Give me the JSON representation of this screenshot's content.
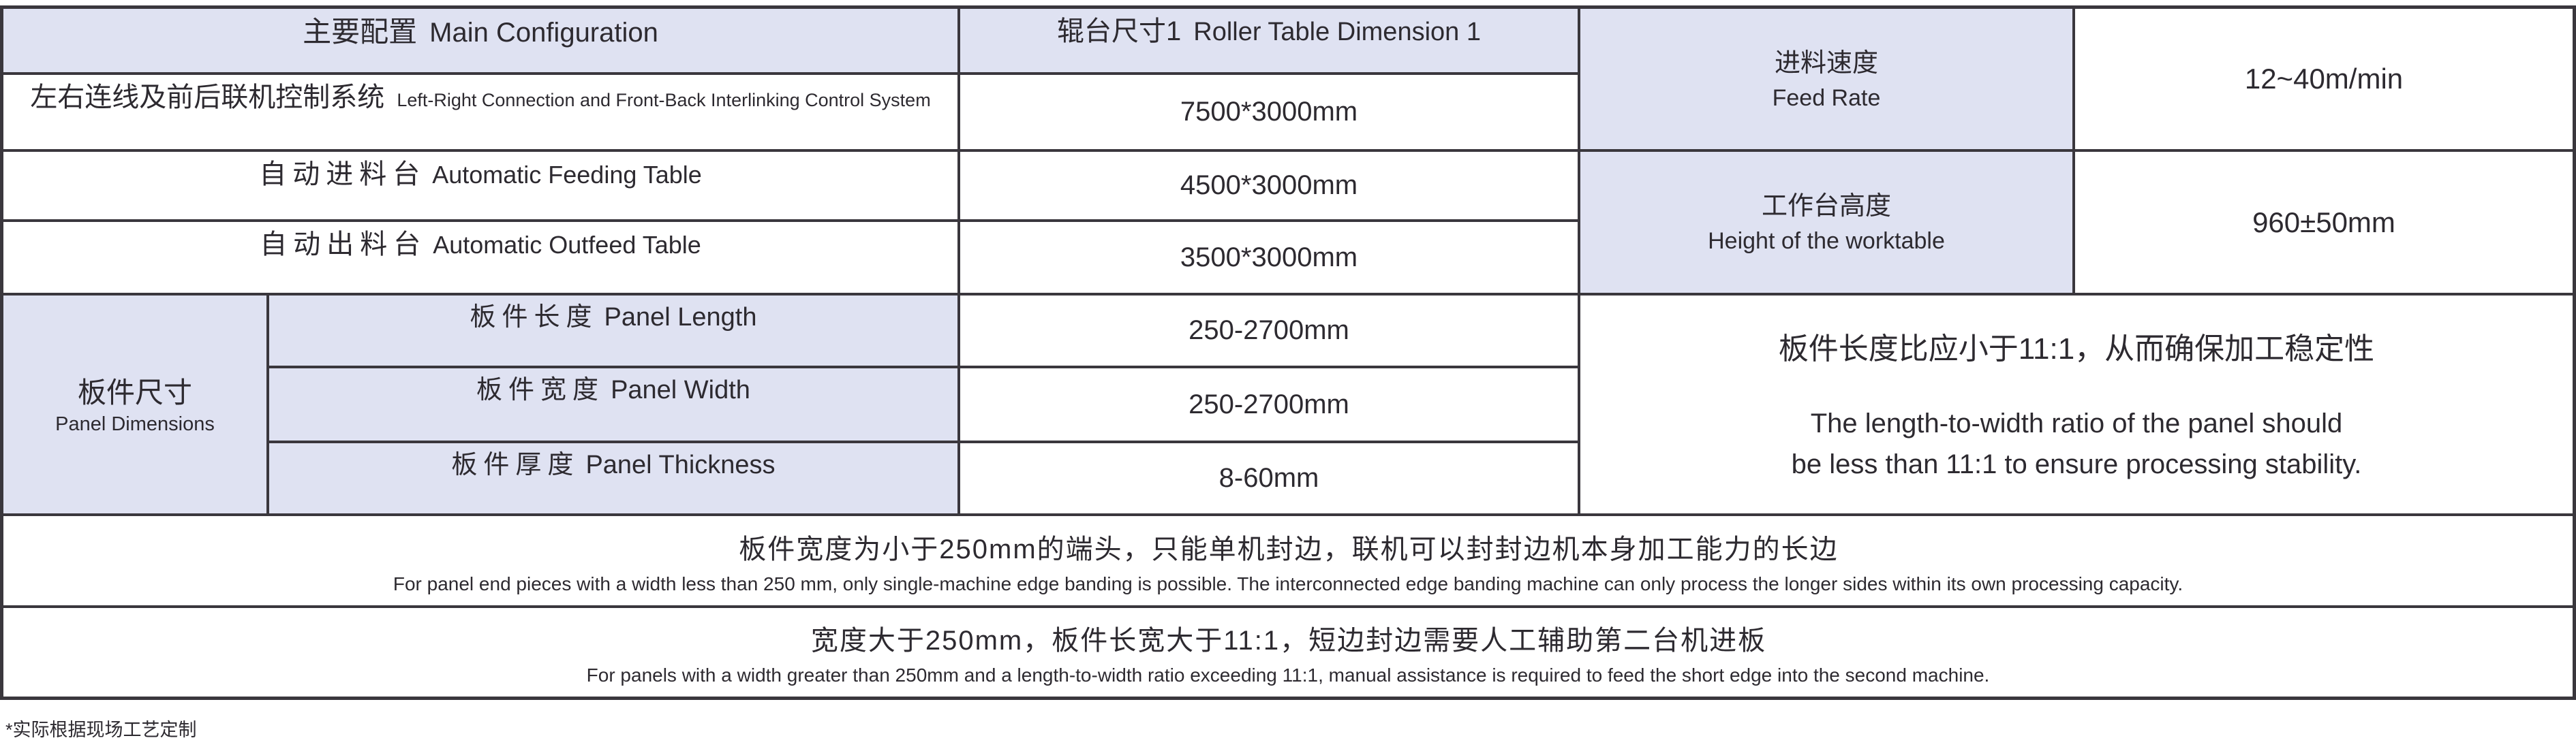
{
  "colors": {
    "header_bg": "#dfe2f2",
    "border": "#3a373d",
    "text": "#2d2a30",
    "page_bg": "#ffffff"
  },
  "table": {
    "main_config_header": {
      "zh": "主要配置",
      "en": "Main Configuration"
    },
    "roller_header": {
      "zh": "辊台尺寸1",
      "en": "Roller Table Dimension 1"
    },
    "feed_rate": {
      "zh": "进料速度",
      "en": "Feed Rate",
      "value": "12~40m/min"
    },
    "interlink_row": {
      "zh": "左右连线及前后联机控制系统",
      "en": "Left-Right Connection and Front-Back Interlinking Control System",
      "value": "7500*3000mm"
    },
    "feeding_table_row": {
      "zh": "自动进料台",
      "en": "Automatic Feeding Table",
      "value": "4500*3000mm"
    },
    "outfeed_table_row": {
      "zh": "自动出料台",
      "en": "Automatic Outfeed Table",
      "value": "3500*3000mm"
    },
    "worktable_height": {
      "zh": "工作台高度",
      "en": "Height of the worktable",
      "value": "960±50mm"
    },
    "panel_dimensions": {
      "zh": "板件尺寸",
      "en": "Panel Dimensions",
      "rows": [
        {
          "zh": "板件长度",
          "en": "Panel Length",
          "value": "250-2700mm"
        },
        {
          "zh": "板件宽度",
          "en": "Panel Width",
          "value": "250-2700mm"
        },
        {
          "zh": "板件厚度",
          "en": "Panel Thickness",
          "value": "8-60mm"
        }
      ]
    },
    "ratio_note": {
      "zh": "板件长度比应小于11:1，从而确保加工稳定性",
      "en_line1": "The length-to-width ratio of the panel should",
      "en_line2": "be less than 11:1 to ensure processing stability."
    },
    "note_row_1": {
      "zh": "板件宽度为小于250mm的端头，只能单机封边，联机可以封封边机本身加工能力的长边",
      "en": "For panel end pieces with a width less than 250 mm, only single-machine edge banding is possible. The interconnected edge banding machine can only process the longer sides within its own processing capacity."
    },
    "note_row_2": {
      "zh": "宽度大于250mm，板件长宽大于11:1，短边封边需要人工辅助第二台机进板",
      "en": "For panels with a width greater than 250mm and a length-to-width ratio exceeding 11:1, manual assistance is required to feed the short edge into the second machine."
    }
  },
  "footer": {
    "note": "*实际根据现场工艺定制"
  }
}
